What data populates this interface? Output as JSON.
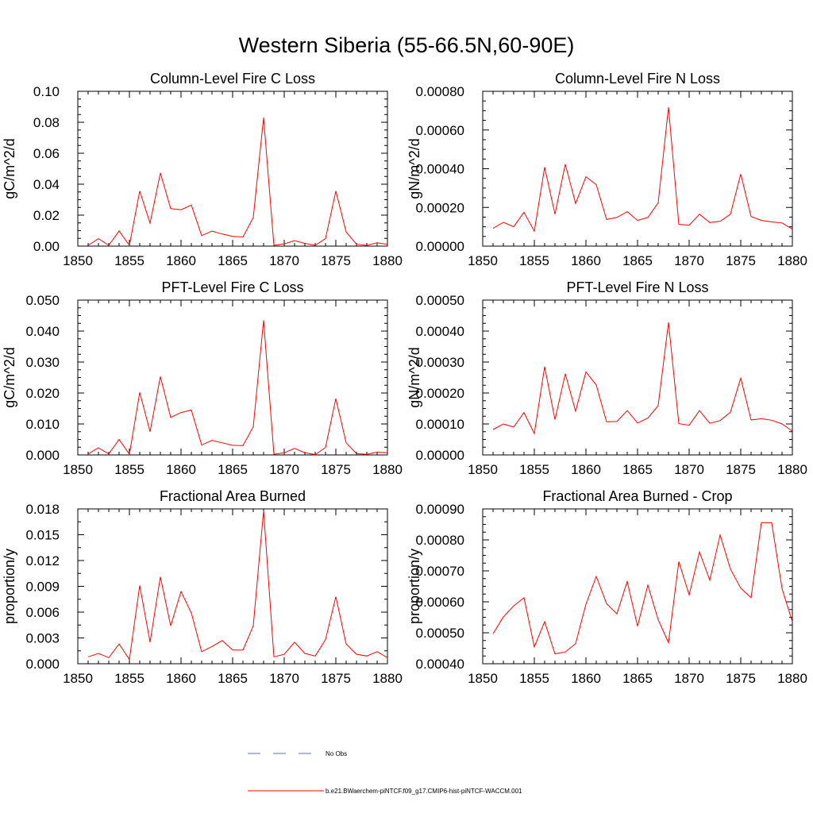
{
  "figure": {
    "title": "Western Siberia (55-66.5N,60-90E)",
    "colors": {
      "model": "#ff0000",
      "obs": "#5a6fb4",
      "axis": "#000000"
    }
  },
  "legend": {
    "entries": [
      {
        "label": "No Obs",
        "style": "dashed",
        "color": "#5a6fb4"
      },
      {
        "label": "b.e21.BWaerchem-piNTCF.f09_g17.CMIP6-hist-piNTCF-WACCM.001",
        "style": "solid",
        "color": "#ff0000"
      }
    ]
  },
  "chart_data": [
    {
      "type": "line",
      "title": "Column-Level Fire C Loss",
      "ylabel": "gC/m^2/d",
      "xlim": [
        1850,
        1880
      ],
      "xticks": [
        "1850",
        "1855",
        "1860",
        "1865",
        "1870",
        "1875",
        "1880"
      ],
      "ylim": [
        0,
        0.1
      ],
      "yticks": [
        "0.00",
        "0.02",
        "0.04",
        "0.06",
        "0.08",
        "0.10"
      ],
      "yminor_per_major": 4,
      "series": [
        {
          "color": "#ff0000",
          "x": [
            1851,
            1852,
            1853,
            1854,
            1855,
            1856,
            1857,
            1858,
            1859,
            1860,
            1861,
            1862,
            1863,
            1864,
            1865,
            1866,
            1867,
            1868,
            1869,
            1870,
            1871,
            1872,
            1873,
            1874,
            1875,
            1876,
            1877,
            1878,
            1879,
            1880
          ],
          "y": [
            0.0005,
            0.0048,
            0.0005,
            0.0098,
            0.0005,
            0.0356,
            0.0148,
            0.0473,
            0.0242,
            0.0235,
            0.0265,
            0.0068,
            0.0097,
            0.0078,
            0.0063,
            0.0059,
            0.0184,
            0.083,
            0.0005,
            0.0015,
            0.0035,
            0.0018,
            0.0005,
            0.0048,
            0.0356,
            0.0092,
            0.0012,
            0.0005,
            0.0022,
            0.0012
          ]
        }
      ]
    },
    {
      "type": "line",
      "title": "Column-Level Fire N Loss",
      "ylabel": "gN/m^2/d",
      "xlim": [
        1850,
        1880
      ],
      "xticks": [
        "1850",
        "1855",
        "1860",
        "1865",
        "1870",
        "1875",
        "1880"
      ],
      "ylim": [
        0,
        0.0008
      ],
      "yticks": [
        "0.00000",
        "0.00020",
        "0.00040",
        "0.00060",
        "0.00080"
      ],
      "yminor_per_major": 4,
      "series": [
        {
          "color": "#ff0000",
          "x": [
            1851,
            1852,
            1853,
            1854,
            1855,
            1856,
            1857,
            1858,
            1859,
            1860,
            1861,
            1862,
            1863,
            1864,
            1865,
            1866,
            1867,
            1868,
            1869,
            1870,
            1871,
            1872,
            1873,
            1874,
            1875,
            1876,
            1877,
            1878,
            1879,
            1880
          ],
          "y": [
            9.2e-05,
            0.000123,
            0.0001,
            0.000175,
            7.7e-05,
            0.000408,
            0.000165,
            0.000423,
            0.00022,
            0.000358,
            0.000318,
            0.000138,
            0.000148,
            0.000178,
            0.000133,
            0.000148,
            0.000223,
            0.000718,
            0.000113,
            0.000108,
            0.000165,
            0.000122,
            0.000128,
            0.000165,
            0.000372,
            0.000153,
            0.000133,
            0.000125,
            0.00012,
            8.8e-05
          ]
        }
      ]
    },
    {
      "type": "line",
      "title": "PFT-Level Fire C Loss",
      "ylabel": "gC/m^2/d",
      "xlim": [
        1850,
        1880
      ],
      "xticks": [
        "1850",
        "1855",
        "1860",
        "1865",
        "1870",
        "1875",
        "1880"
      ],
      "ylim": [
        0,
        0.05
      ],
      "yticks": [
        "0.000",
        "0.010",
        "0.020",
        "0.030",
        "0.040",
        "0.050"
      ],
      "yminor_per_major": 4,
      "series": [
        {
          "color": "#ff0000",
          "x": [
            1851,
            1852,
            1853,
            1854,
            1855,
            1856,
            1857,
            1858,
            1859,
            1860,
            1861,
            1862,
            1863,
            1864,
            1865,
            1866,
            1867,
            1868,
            1869,
            1870,
            1871,
            1872,
            1873,
            1874,
            1875,
            1876,
            1877,
            1878,
            1879,
            1880
          ],
          "y": [
            0.0003,
            0.0023,
            0.0003,
            0.005,
            0.0002,
            0.0202,
            0.0075,
            0.0253,
            0.0121,
            0.0137,
            0.0145,
            0.0032,
            0.0047,
            0.0039,
            0.0031,
            0.003,
            0.0091,
            0.0435,
            0.0002,
            0.0007,
            0.0021,
            0.0007,
            0.0001,
            0.0024,
            0.0182,
            0.0039,
            0.0004,
            0.0002,
            0.0009,
            0.0007
          ]
        }
      ]
    },
    {
      "type": "line",
      "title": "PFT-Level Fire N Loss",
      "ylabel": "gN/m^2/d",
      "xlim": [
        1850,
        1880
      ],
      "xticks": [
        "1850",
        "1855",
        "1860",
        "1865",
        "1870",
        "1875",
        "1880"
      ],
      "ylim": [
        0,
        0.0005
      ],
      "yticks": [
        "0.00000",
        "0.00010",
        "0.00020",
        "0.00030",
        "0.00040",
        "0.00050"
      ],
      "yminor_per_major": 4,
      "series": [
        {
          "color": "#ff0000",
          "x": [
            1851,
            1852,
            1853,
            1854,
            1855,
            1856,
            1857,
            1858,
            1859,
            1860,
            1861,
            1862,
            1863,
            1864,
            1865,
            1866,
            1867,
            1868,
            1869,
            1870,
            1871,
            1872,
            1873,
            1874,
            1875,
            1876,
            1877,
            1878,
            1879,
            1880
          ],
          "y": [
            8.2e-05,
            0.0001,
            9e-05,
            0.000137,
            6.9e-05,
            0.000285,
            0.000114,
            0.000262,
            0.000141,
            0.000268,
            0.000226,
            0.000107,
            0.000108,
            0.000143,
            0.000103,
            0.000119,
            0.000159,
            0.000428,
            0.000101,
            9.6e-05,
            0.000143,
            0.000102,
            0.000111,
            0.000138,
            0.000248,
            0.000113,
            0.000117,
            0.000112,
            0.0001,
            7.7e-05
          ]
        }
      ]
    },
    {
      "type": "line",
      "title": "Fractional Area Burned",
      "ylabel": "proportion/y",
      "xlim": [
        1850,
        1880
      ],
      "xticks": [
        "1850",
        "1855",
        "1860",
        "1865",
        "1870",
        "1875",
        "1880"
      ],
      "ylim": [
        0,
        0.018
      ],
      "yticks": [
        "0.000",
        "0.003",
        "0.006",
        "0.009",
        "0.012",
        "0.015",
        "0.018"
      ],
      "yminor_per_major": 2,
      "series": [
        {
          "color": "#ff0000",
          "x": [
            1851,
            1852,
            1853,
            1854,
            1855,
            1856,
            1857,
            1858,
            1859,
            1860,
            1861,
            1862,
            1863,
            1864,
            1865,
            1866,
            1867,
            1868,
            1869,
            1870,
            1871,
            1872,
            1873,
            1874,
            1875,
            1876,
            1877,
            1878,
            1879,
            1880
          ],
          "y": [
            0.0008,
            0.0012,
            0.0007,
            0.0023,
            0.0005,
            0.0091,
            0.0025,
            0.0101,
            0.0044,
            0.0084,
            0.0059,
            0.0014,
            0.002,
            0.0027,
            0.0016,
            0.0016,
            0.0044,
            0.0178,
            0.0008,
            0.0011,
            0.0025,
            0.0012,
            0.0009,
            0.0028,
            0.0078,
            0.0023,
            0.0011,
            0.0009,
            0.0014,
            0.0007
          ]
        }
      ]
    },
    {
      "type": "line",
      "title": "Fractional Area Burned - Crop",
      "ylabel": "proportion/y",
      "xlim": [
        1850,
        1880
      ],
      "xticks": [
        "1850",
        "1855",
        "1860",
        "1865",
        "1870",
        "1875",
        "1880"
      ],
      "ylim": [
        0.0004,
        0.0009
      ],
      "yticks": [
        "0.00040",
        "0.00050",
        "0.00060",
        "0.00070",
        "0.00080",
        "0.00090"
      ],
      "yminor_per_major": 4,
      "series": [
        {
          "color": "#ff0000",
          "x": [
            1851,
            1852,
            1853,
            1854,
            1855,
            1856,
            1857,
            1858,
            1859,
            1860,
            1861,
            1862,
            1863,
            1864,
            1865,
            1866,
            1867,
            1868,
            1869,
            1870,
            1871,
            1872,
            1873,
            1874,
            1875,
            1876,
            1877,
            1878,
            1879,
            1880
          ],
          "y": [
            0.000497,
            0.000551,
            0.000587,
            0.000613,
            0.000454,
            0.000536,
            0.000432,
            0.000438,
            0.000465,
            0.000592,
            0.000682,
            0.000594,
            0.000561,
            0.000666,
            0.000521,
            0.000654,
            0.000542,
            0.000468,
            0.00073,
            0.000622,
            0.000761,
            0.00067,
            0.000816,
            0.000706,
            0.000644,
            0.000613,
            0.000856,
            0.000855,
            0.000643,
            0.000535
          ]
        }
      ]
    }
  ]
}
